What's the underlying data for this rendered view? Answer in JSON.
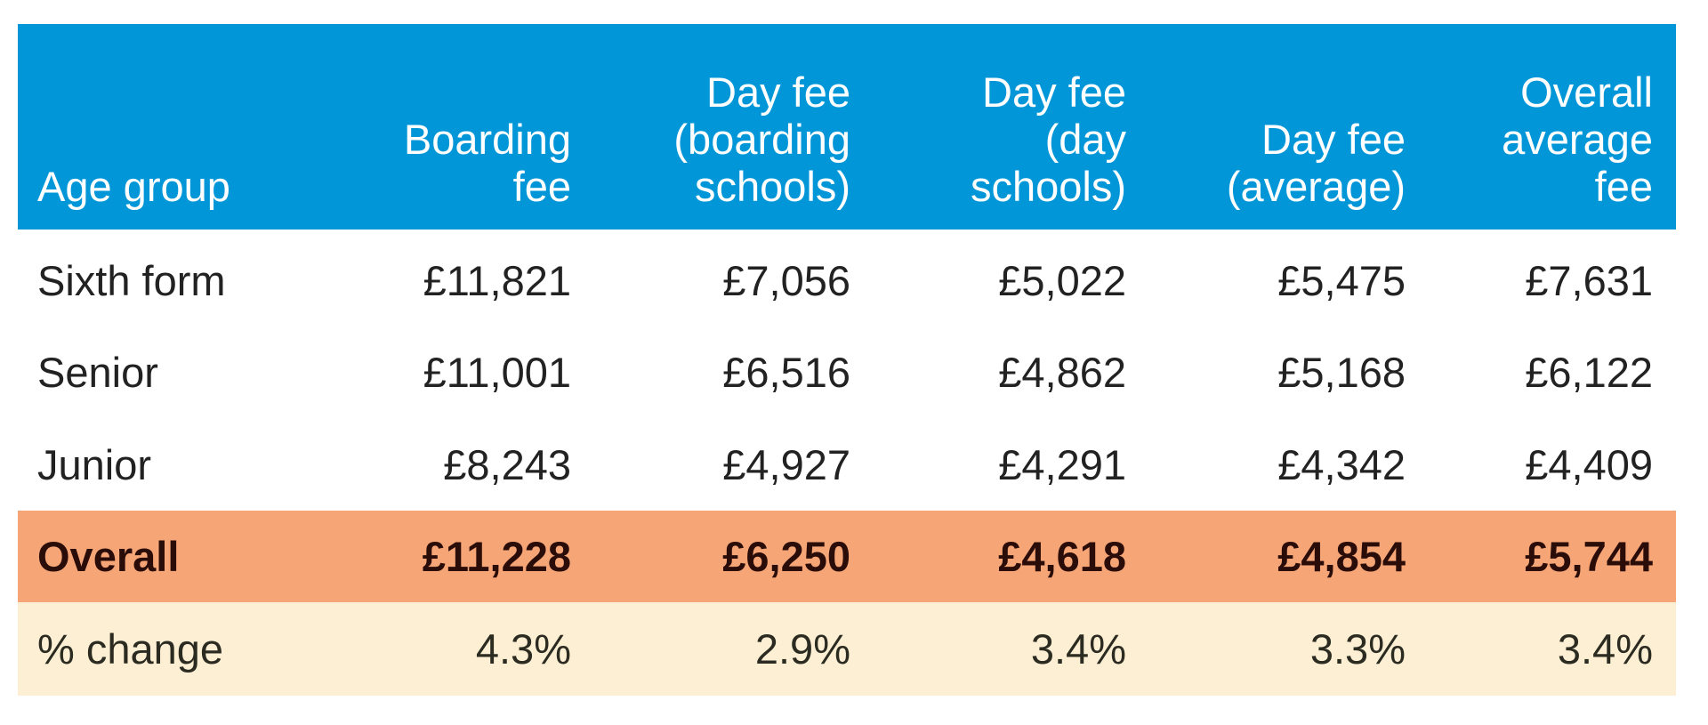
{
  "table": {
    "headers": [
      [
        "Age group"
      ],
      [
        "Boarding",
        "fee"
      ],
      [
        "Day fee",
        "(boarding",
        "schools)"
      ],
      [
        "Day fee",
        "(day",
        "schools)"
      ],
      [
        "Day fee",
        "(average)"
      ],
      [
        "Overall",
        "average",
        "fee"
      ]
    ],
    "rows": [
      [
        "Sixth form",
        "£11,821",
        "£7,056",
        "£5,022",
        "£5,475",
        "£7,631"
      ],
      [
        "Senior",
        "£11,001",
        "£6,516",
        "£4,862",
        "£5,168",
        "£6,122"
      ],
      [
        "Junior",
        "£8,243",
        "£4,927",
        "£4,291",
        "£4,342",
        "£4,409"
      ]
    ],
    "overall": [
      "Overall",
      "£11,228",
      "£6,250",
      "£4,618",
      "£4,854",
      "£5,744"
    ],
    "change": [
      "% change",
      "4.3%",
      "2.9%",
      "3.4%",
      "3.3%",
      "3.4%"
    ]
  },
  "colors": {
    "header": "#0096d8",
    "overall_row": "#f6a576",
    "change_row": "#fdefd3"
  }
}
